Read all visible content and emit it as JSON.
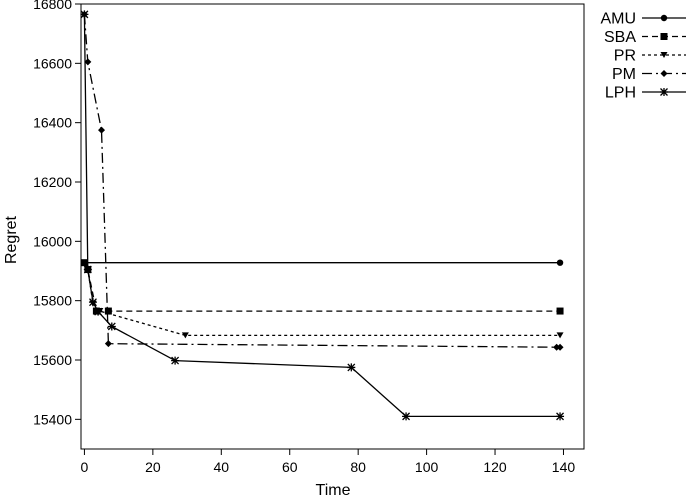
{
  "chart_data": {
    "type": "line",
    "title": "",
    "xlabel": "Time",
    "ylabel": "Regret",
    "xlim": [
      -1,
      146
    ],
    "ylim": [
      15300,
      16800
    ],
    "xticks": [
      0,
      20,
      40,
      60,
      80,
      100,
      120,
      140
    ],
    "yticks": [
      15400,
      15600,
      15800,
      16000,
      16200,
      16400,
      16600,
      16800
    ],
    "grid": false,
    "legend_position": "right",
    "series": [
      {
        "name": "AMU",
        "dash": "solid",
        "marker": "circle",
        "points": [
          [
            0,
            15928
          ],
          [
            139,
            15928
          ]
        ]
      },
      {
        "name": "SBA",
        "dash": "short-dash",
        "marker": "square",
        "points": [
          [
            0,
            15928
          ],
          [
            1,
            15905
          ],
          [
            3.5,
            15765
          ],
          [
            7,
            15765
          ],
          [
            139,
            15765
          ]
        ]
      },
      {
        "name": "PR",
        "dash": "dotted",
        "marker": "triangle-down",
        "points": [
          [
            0,
            15928
          ],
          [
            1,
            15905
          ],
          [
            2.5,
            15790
          ],
          [
            4.5,
            15765
          ],
          [
            29.5,
            15683
          ],
          [
            139,
            15683
          ]
        ]
      },
      {
        "name": "PM",
        "dash": "dash-dot",
        "marker": "diamond",
        "points": [
          [
            0,
            16765
          ],
          [
            1,
            16605
          ],
          [
            5,
            16375
          ],
          [
            7,
            15655
          ],
          [
            138,
            15643
          ],
          [
            139,
            15643
          ]
        ]
      },
      {
        "name": "LPH",
        "dash": "solid",
        "marker": "x-star",
        "points": [
          [
            0,
            16765
          ],
          [
            1,
            15905
          ],
          [
            2.5,
            15795
          ],
          [
            4,
            15763
          ],
          [
            8,
            15713
          ],
          [
            26.5,
            15598
          ],
          [
            78,
            15575
          ],
          [
            94,
            15410
          ],
          [
            139,
            15410
          ]
        ]
      }
    ]
  }
}
